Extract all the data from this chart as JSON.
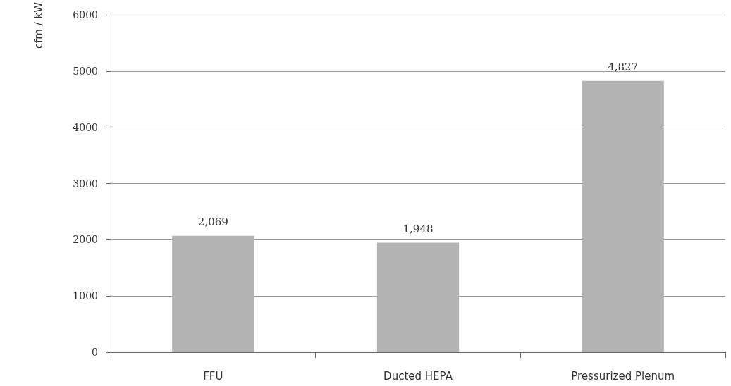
{
  "chart_data": {
    "type": "bar",
    "ylabel": "cfm / kW",
    "categories": [
      "FFU",
      "Ducted HEPA",
      "Pressurized Plenum"
    ],
    "values": [
      2069,
      1948,
      4827
    ],
    "value_labels": [
      "2,069",
      "1,948",
      "4,827"
    ],
    "color": "#b3b3b3",
    "ylim": [
      0,
      6000
    ],
    "yticks": [
      0,
      1000,
      2000,
      3000,
      4000,
      5000,
      6000
    ],
    "grid": "y"
  }
}
